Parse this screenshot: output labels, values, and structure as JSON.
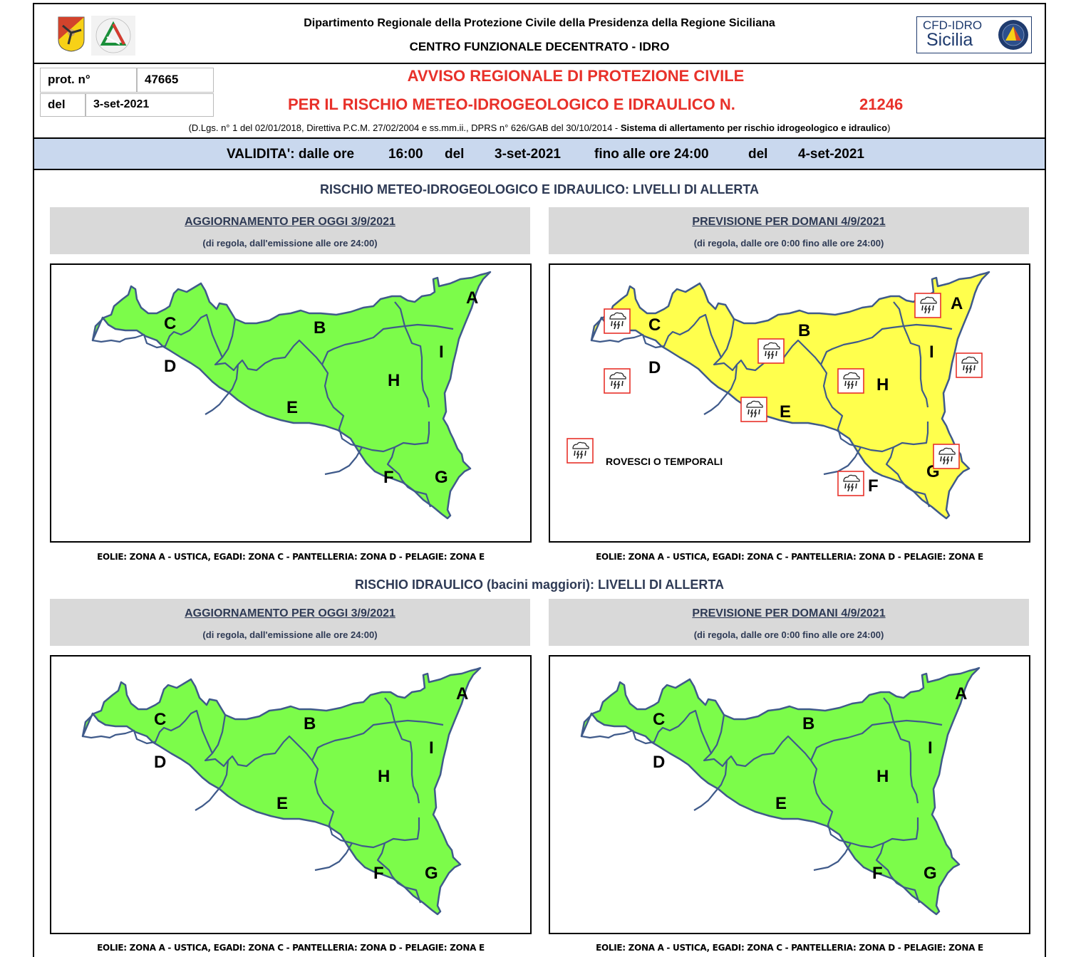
{
  "header": {
    "department": "Dipartimento Regionale della Protezione Civile della Presidenza della Regione Siciliana",
    "centre": "CENTRO FUNZIONALE DECENTRATO - IDRO",
    "logo_left_1": "regione-sicilia-coat-of-arms",
    "logo_left_2": "protezione-civile-nazionale-logo",
    "logo_right": {
      "line1": "CFD-IDRO",
      "line2": "Sicilia"
    }
  },
  "protocol": {
    "prot_label": "prot. n°",
    "prot_value": "47665",
    "del_label": "del",
    "del_value": "3-set-2021"
  },
  "title": {
    "line1": "AVVISO REGIONALE DI PROTEZIONE CIVILE",
    "line2": "PER IL RISCHIO METEO-IDROGEOLOGICO E IDRAULICO N.",
    "number": "21246",
    "legal_plain": "(D.Lgs. n° 1 del 02/01/2018, Direttiva P.C.M. 27/02/2004 e ss.mm.ii., DPRS n° 626/GAB del 30/10/2014 - ",
    "legal_bold": "Sistema di allertamento per rischio idrogeologico e idraulico",
    "legal_end": ")"
  },
  "validity": {
    "label": "VALIDITA': dalle ore",
    "from_time": "16:00",
    "del1": "del",
    "from_date": "3-set-2021",
    "until_label": "fino alle ore 24:00",
    "del2": "del",
    "to_date": "4-set-2021"
  },
  "sections": [
    {
      "title": "RISCHIO METEO-IDROGEOLOGICO E IDRAULICO: LIVELLI DI ALLERTA",
      "panels": [
        {
          "heading": "AGGIORNAMENTO PER OGGI 3/9/2021",
          "subheading": "(di regola, dall'emissione alle ore 24:00)",
          "alert_color": "#7cfc4a",
          "alert_level": "green",
          "storm_icons": [],
          "islands": "EOLIE: ZONA A - USTICA, EGADI: ZONA C - PANTELLERIA: ZONA D - PELAGIE: ZONA E"
        },
        {
          "heading": "PREVISIONE PER DOMANI 4/9/2021",
          "subheading": "(di regola, dalle ore 0:00 fino alle ore 24:00)",
          "alert_color": "#ffff4d",
          "alert_level": "yellow",
          "storm_icons": [
            "A",
            "B",
            "C",
            "D",
            "E",
            "F",
            "G",
            "H",
            "I"
          ],
          "legend": "ROVESCI O TEMPORALI",
          "islands": "EOLIE: ZONA A - USTICA, EGADI: ZONA C - PANTELLERIA: ZONA D - PELAGIE: ZONA E"
        }
      ]
    },
    {
      "title": "RISCHIO IDRAULICO (bacini maggiori): LIVELLI DI ALLERTA",
      "panels": [
        {
          "heading": "AGGIORNAMENTO PER OGGI 3/9/2021",
          "subheading": "(di regola, dall'emissione alle ore 24:00)",
          "alert_color": "#7cfc4a",
          "alert_level": "green",
          "islands": "EOLIE: ZONA A - USTICA, EGADI: ZONA C - PANTELLERIA: ZONA D - PELAGIE: ZONA E"
        },
        {
          "heading": "PREVISIONE PER DOMANI 4/9/2021",
          "subheading": "(di regola, dalle ore 0:00 fino alle ore 24:00)",
          "alert_color": "#7cfc4a",
          "alert_level": "green",
          "islands": "EOLIE: ZONA A - USTICA, EGADI: ZONA C - PANTELLERIA: ZONA D - PELAGIE: ZONA E"
        }
      ]
    }
  ],
  "zones": [
    "A",
    "B",
    "C",
    "D",
    "E",
    "F",
    "G",
    "H",
    "I"
  ],
  "colors": {
    "green_alert": "#7cfc4a",
    "yellow_alert": "#ffff4d",
    "border": "#3f5a8a",
    "red_title": "#e8312a",
    "validity_bg": "#c9d8ee",
    "panel_head_bg": "#d9d9d9"
  }
}
